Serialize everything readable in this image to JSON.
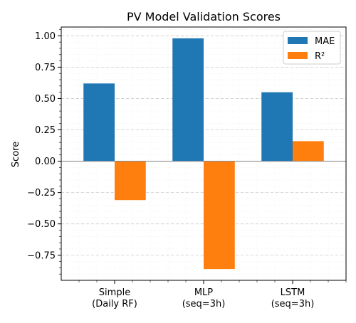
{
  "chart_data": {
    "type": "bar",
    "title": "PV Model Validation Scores",
    "xlabel": "",
    "ylabel": "Score",
    "categories": [
      "Simple\n(Daily RF)",
      "MLP\n(seq=3h)",
      "LSTM\n(seq=3h)"
    ],
    "series": [
      {
        "name": "MAE",
        "color": "#1f77b4",
        "values": [
          0.62,
          0.98,
          0.55
        ]
      },
      {
        "name": "R²",
        "color": "#ff7f0e",
        "values": [
          -0.31,
          -0.86,
          0.16
        ]
      }
    ],
    "ylim": [
      -0.95,
      1.07
    ],
    "yticks": [
      -0.75,
      -0.5,
      -0.25,
      0.0,
      0.25,
      0.5,
      0.75,
      1.0
    ],
    "ytick_labels": [
      "−0.75",
      "−0.50",
      "−0.25",
      "0.00",
      "0.25",
      "0.50",
      "0.75",
      "1.00"
    ],
    "grid": true,
    "legend_position": "top-right"
  }
}
